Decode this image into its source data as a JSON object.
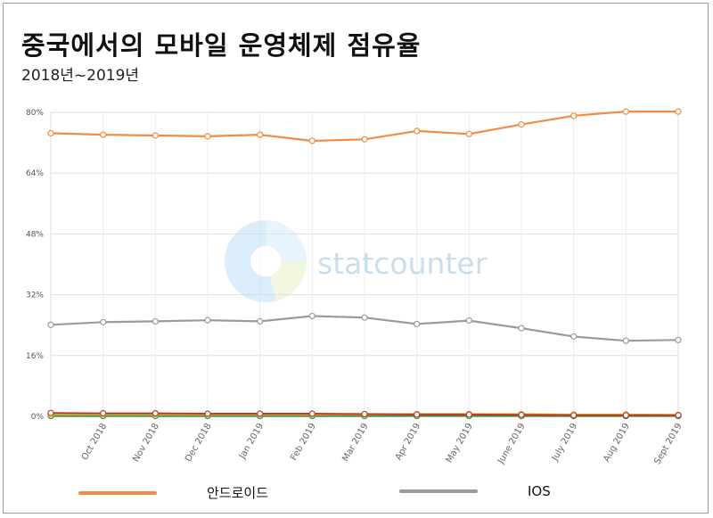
{
  "title": "중국에서의 모바일 운영체제 점유율",
  "subtitle": "2018년~2019년",
  "watermark": "statcounter",
  "chart_data": {
    "type": "line",
    "categories": [
      "",
      "Oct 2018",
      "Nov 2018",
      "Dec 2018",
      "Jan 2019",
      "Feb 2019",
      "Mar 2019",
      "Apr 2019",
      "May 2019",
      "June 2019",
      "July 2019",
      "Aug 2019",
      "Sept 2019"
    ],
    "ylim": [
      0,
      80
    ],
    "yticks": [
      0,
      16,
      32,
      48,
      64,
      80
    ],
    "ytick_labels": [
      "0%",
      "16%",
      "32%",
      "48%",
      "64%",
      "80%"
    ],
    "grid": true,
    "series": [
      {
        "name": "안드로이드",
        "color": "#f08c43",
        "values": [
          74.5,
          74.1,
          73.9,
          73.7,
          74.1,
          72.5,
          72.9,
          75.1,
          74.3,
          76.8,
          79.1,
          80.2,
          80.2
        ]
      },
      {
        "name": "IOS",
        "color": "#9b9b9b",
        "values": [
          24.1,
          24.8,
          25.0,
          25.3,
          25.0,
          26.4,
          26.0,
          24.3,
          25.2,
          23.2,
          21.0,
          19.9,
          20.1
        ]
      },
      {
        "name": "",
        "color": "#c0382b",
        "values": [
          0.9,
          0.8,
          0.8,
          0.7,
          0.7,
          0.7,
          0.6,
          0.5,
          0.5,
          0.4,
          0.3,
          0.3,
          0.3
        ]
      },
      {
        "name": "",
        "color": "#c6c23a",
        "values": [
          0.5,
          0.5,
          0.5,
          0.5,
          0.5,
          0.5,
          0.5,
          0.6,
          0.6,
          0.6,
          0.5,
          0.5,
          0.4
        ]
      },
      {
        "name": "",
        "color": "#3f8a3a",
        "values": [
          0.1,
          0.1,
          0.1,
          0.1,
          0.1,
          0.1,
          0.1,
          0.1,
          0.1,
          0.1,
          0.1,
          0.1,
          0.1
        ]
      }
    ],
    "legend": [
      {
        "label": "안드로이드",
        "color": "#f08c43"
      },
      {
        "label": "IOS",
        "color": "#9b9b9b"
      }
    ],
    "legend_position": "bottom"
  }
}
